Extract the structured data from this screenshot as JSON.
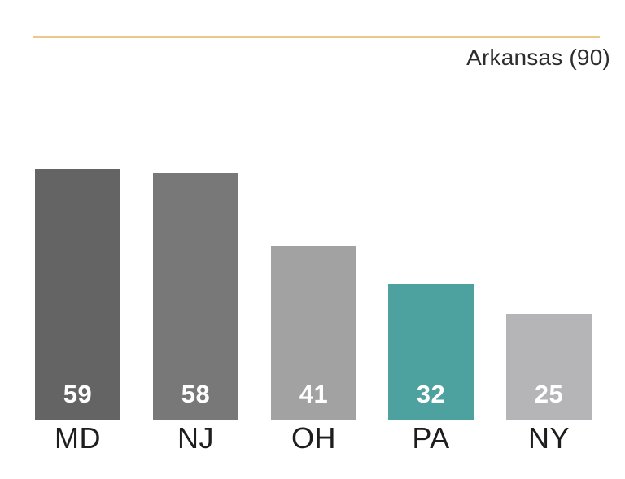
{
  "header": {
    "title": "Arkansas (90)"
  },
  "chart_data": {
    "type": "bar",
    "title": "Arkansas (90)",
    "categories": [
      "MD",
      "NJ",
      "OH",
      "PA",
      "NY"
    ],
    "values": [
      59,
      58,
      41,
      32,
      25
    ],
    "xlabel": "",
    "ylabel": "",
    "ylim": [
      0,
      62
    ],
    "grid": false,
    "legend_position": "none",
    "value_labels": [
      "59",
      "58",
      "41",
      "32",
      "25"
    ],
    "value_label_color": "#ffffff",
    "bar_colors": [
      "#646464",
      "#787878",
      "#a2a2a2",
      "#4da19f",
      "#b5b5b7"
    ],
    "highlight_category": "PA",
    "highlight_color": "#4da19f",
    "accent_rule_color": "#eac98c",
    "category_label_color": "#1d1d1d",
    "title_color": "#2d2d2d",
    "background_color": "#ffffff"
  }
}
